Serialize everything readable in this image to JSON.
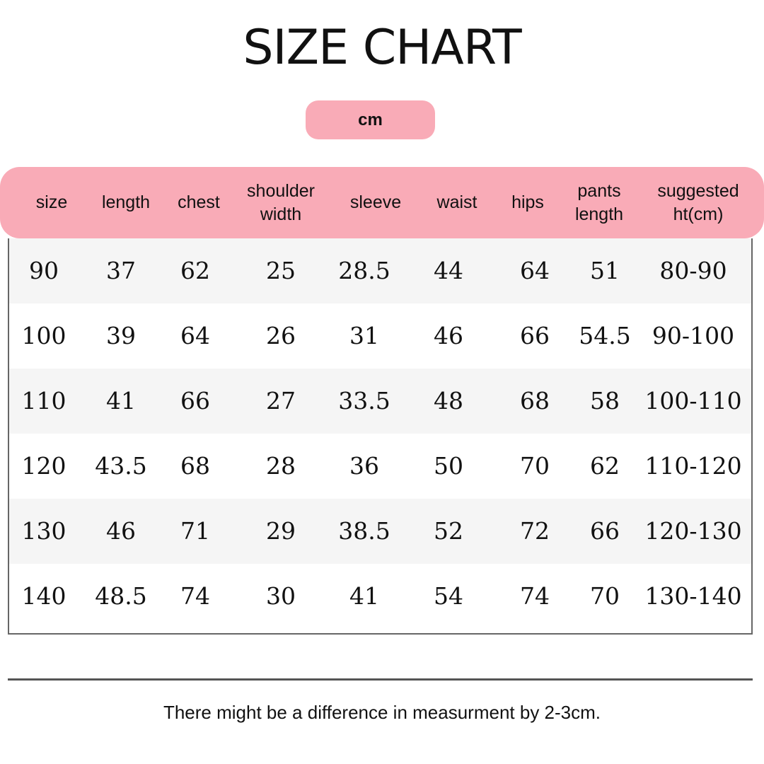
{
  "title": "SIZE CHART",
  "unit": "cm",
  "colors": {
    "accent": "#f9abb7",
    "row_alt": "#f5f5f5",
    "border": "#666666"
  },
  "table": {
    "headers": [
      "size",
      "length",
      "chest",
      "shoulder\nwidth",
      "sleeve",
      "waist",
      "hips",
      "pants\nlength",
      "suggested\nht(cm)"
    ],
    "rows": [
      [
        "90",
        "37",
        "62",
        "25",
        "28.5",
        "44",
        "64",
        "51",
        "80-90"
      ],
      [
        "100",
        "39",
        "64",
        "26",
        "31",
        "46",
        "66",
        "54.5",
        "90-100"
      ],
      [
        "110",
        "41",
        "66",
        "27",
        "33.5",
        "48",
        "68",
        "58",
        "100-110"
      ],
      [
        "120",
        "43.5",
        "68",
        "28",
        "36",
        "50",
        "70",
        "62",
        "110-120"
      ],
      [
        "130",
        "46",
        "71",
        "29",
        "38.5",
        "52",
        "72",
        "66",
        "120-130"
      ],
      [
        "140",
        "48.5",
        "74",
        "30",
        "41",
        "54",
        "74",
        "70",
        "130-140"
      ]
    ]
  },
  "note": "There might be a difference in measurment by 2-3cm."
}
